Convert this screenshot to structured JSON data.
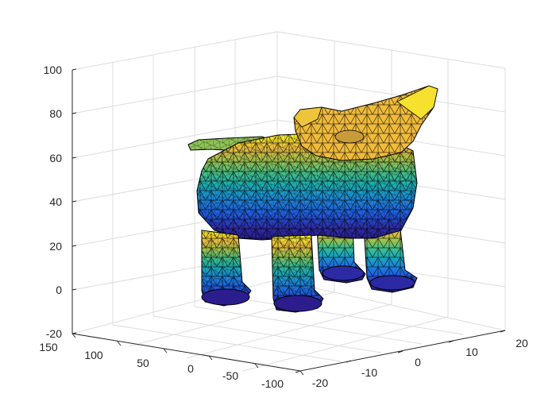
{
  "chart_data": {
    "type": "3d-surface-mesh",
    "title": "",
    "xlabel": "",
    "ylabel": "",
    "zlabel": "",
    "colormap": "parula",
    "edge_color": "#000000",
    "grid": true,
    "view": "default 3-D (az -37.5, el 30)",
    "axes": {
      "x": {
        "range": [
          -20,
          20
        ],
        "ticks": [
          "-20",
          "-10",
          "0",
          "10",
          "20"
        ]
      },
      "y": {
        "range": [
          -100,
          150
        ],
        "ticks": [
          "150",
          "100",
          "50",
          "0",
          "-50",
          "-100"
        ]
      },
      "z": {
        "range": [
          -20,
          100
        ],
        "ticks": [
          "-20",
          "0",
          "20",
          "40",
          "60",
          "80",
          "100"
        ]
      }
    },
    "subject": "triangulated 3-D mesh of a four-legged animal (cat) colored by height"
  }
}
